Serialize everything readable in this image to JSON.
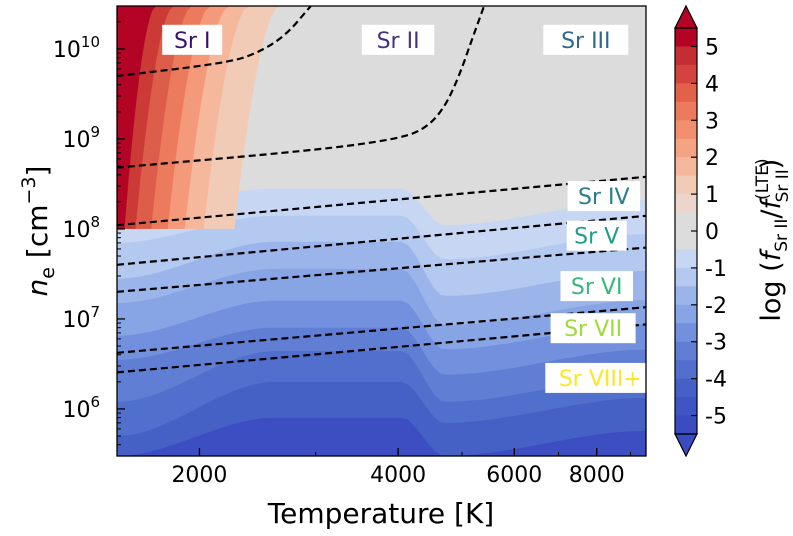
{
  "chart_data": {
    "type": "heatmap",
    "title": "",
    "xlabel": "Temperature [K]",
    "ylabel_main": "n",
    "ylabel_sub": "e",
    "ylabel_unit_open": " [cm",
    "ylabel_unit_exp": "−3",
    "ylabel_unit_close": "]",
    "x_scale": "log",
    "y_scale": "log",
    "xlim": [
      1500,
      9500
    ],
    "ylim": [
      300000,
      30000000000
    ],
    "x_ticks": [
      {
        "value": 2000,
        "label": "2000"
      },
      {
        "value": 4000,
        "label": "4000"
      },
      {
        "value": 6000,
        "label": "6000"
      },
      {
        "value": 8000,
        "label": "8000"
      }
    ],
    "y_ticks": [
      {
        "value": 1000000,
        "base": "10",
        "exp": "6"
      },
      {
        "value": 10000000,
        "base": "10",
        "exp": "7"
      },
      {
        "value": 100000000,
        "base": "10",
        "exp": "8"
      },
      {
        "value": 1000000000,
        "base": "10",
        "exp": "9"
      },
      {
        "value": 10000000000,
        "base": "10",
        "exp": "10"
      }
    ],
    "ion_stages": [
      {
        "label": "Sr I",
        "T": 1950,
        "ne": 12000000000,
        "color": "#3b0f6f"
      },
      {
        "label": "Sr II",
        "T": 4000,
        "ne": 12000000000,
        "color": "#46327e"
      },
      {
        "label": "Sr III",
        "T": 7700,
        "ne": 12000000000,
        "color": "#31688e"
      },
      {
        "label": "Sr IV",
        "T": 8200,
        "ne": 220000000,
        "color": "#277f8e"
      },
      {
        "label": "Sr V",
        "T": 8000,
        "ne": 80000000,
        "color": "#1f9e89"
      },
      {
        "label": "Sr VI",
        "T": 8000,
        "ne": 22000000,
        "color": "#35b779"
      },
      {
        "label": "Sr VII",
        "T": 7900,
        "ne": 7500000,
        "color": "#a0da39"
      },
      {
        "label": "Sr VIII+",
        "T": 8100,
        "ne": 2100000,
        "color": "#fde725"
      }
    ],
    "boundaries": [
      {
        "name": "Sr I / Sr II",
        "T": [
          1500,
          2200,
          2450,
          2700,
          2950
        ],
        "ne": [
          5000000000,
          7000000000,
          9000000000,
          14000000000,
          30000000000
        ]
      },
      {
        "name": "Sr II / Sr III",
        "T": [
          1500,
          3000,
          4000,
          4400,
          4700,
          4950,
          5200,
          5400
        ],
        "ne": [
          480000000,
          750000000,
          1000000000,
          1300000000,
          2200000000,
          5000000000,
          14000000000,
          30000000000
        ]
      },
      {
        "name": "Sr III / Sr IV",
        "T": [
          1500,
          9500
        ],
        "ne": [
          110000000,
          380000000
        ]
      },
      {
        "name": "Sr IV / Sr V",
        "T": [
          1500,
          9500
        ],
        "ne": [
          40000000,
          140000000
        ]
      },
      {
        "name": "Sr V / Sr VI",
        "T": [
          1500,
          9500
        ],
        "ne": [
          20000000,
          62000000
        ]
      },
      {
        "name": "Sr VI / Sr VII",
        "T": [
          1500,
          9500
        ],
        "ne": [
          4200000,
          13500000
        ]
      },
      {
        "name": "Sr VII / Sr VIII+",
        "T": [
          1500,
          9500
        ],
        "ne": [
          2550000,
          8700000
        ]
      }
    ],
    "fill_levels": [
      {
        "label": "0",
        "color": "#dcdcdc"
      },
      {
        "label": "0.5",
        "color": "#f2cbb7"
      },
      {
        "label": "1",
        "color": "#f5b89c"
      },
      {
        "label": "1.5",
        "color": "#f49a7b"
      },
      {
        "label": "2",
        "color": "#ec7a5c"
      },
      {
        "label": "2.5",
        "color": "#dc5d4a"
      },
      {
        "label": "3",
        "color": "#cb3a34"
      },
      {
        "label": "3.5",
        "color": "#b40426"
      }
    ],
    "level_curves": [
      {
        "name": "Sr I contour 0.5",
        "T_left": 2650,
        "slope": 0.46,
        "T_right": 2260
      },
      {
        "name": "Sr I contour 1.0",
        "T_left": 2380,
        "slope": 0.4,
        "T_right": 2030
      },
      {
        "name": "Sr I contour 1.5",
        "T_left": 2220,
        "slope": 0.36,
        "T_right": 1900
      },
      {
        "name": "Sr I contour 2.0",
        "T_left": 2080,
        "slope": 0.33,
        "T_right": 1790
      },
      {
        "name": "Sr I contour 2.5",
        "T_left": 1950,
        "slope": 0.3,
        "T_right": 1690
      },
      {
        "name": "Sr I contour 3.0",
        "T_left": 1830,
        "slope": 0.28,
        "T_right": 1600
      },
      {
        "name": "Sr I contour 3.5",
        "T_left": 1720,
        "slope": 0.26,
        "T_right": 1540
      }
    ],
    "blue_levels": [
      {
        "label": "-0.5",
        "color": "#c7d6f2",
        "low_ne": 160000000,
        "high_ne": 280000000,
        "drop_ne": 110000000
      },
      {
        "label": "-1",
        "color": "#b3c9f0",
        "low_ne": 70000000,
        "high_ne": 140000000,
        "drop_ne": 46000000
      },
      {
        "label": "-1.5",
        "color": "#9bb5ea",
        "low_ne": 28000000,
        "high_ne": 72000000,
        "drop_ne": 18000000
      },
      {
        "label": "-2",
        "color": "#87a5e4",
        "low_ne": 15000000,
        "high_ne": 36000000,
        "drop_ne": 8500000
      },
      {
        "label": "-2.5",
        "color": "#7290dd",
        "low_ne": 6500000,
        "high_ne": 16000000,
        "drop_ne": 4600000
      },
      {
        "label": "-3",
        "color": "#617ed5",
        "low_ne": 3500000,
        "high_ne": 8000000,
        "drop_ne": 2400000
      },
      {
        "label": "-3.5",
        "color": "#5170cd",
        "low_ne": 1200000,
        "high_ne": 4400000,
        "drop_ne": 1200000
      },
      {
        "label": "-4",
        "color": "#4661c6",
        "low_ne": 500000,
        "high_ne": 2000000,
        "drop_ne": 700000
      },
      {
        "label": "-4.5",
        "color": "#3c4ec2",
        "low_ne": 300000,
        "high_ne": 800000,
        "drop_ne": 300000
      }
    ],
    "colorbar": {
      "label": "log",
      "ylabel_prefix": "f",
      "ylabel_sub": "Sr II",
      "ylabel_super": "(LTE)",
      "range": [
        -5.5,
        5.5
      ],
      "levels": [
        {
          "from": 5,
          "to": 5.5,
          "color": "#b40426"
        },
        {
          "from": 4.5,
          "to": 5,
          "color": "#c42d32"
        },
        {
          "from": 4,
          "to": 4.5,
          "color": "#d5433e"
        },
        {
          "from": 3.5,
          "to": 4,
          "color": "#e16149"
        },
        {
          "from": 3,
          "to": 3.5,
          "color": "#ec7a5c"
        },
        {
          "from": 2.5,
          "to": 3,
          "color": "#f28f6e"
        },
        {
          "from": 2,
          "to": 2.5,
          "color": "#f4a383"
        },
        {
          "from": 1.5,
          "to": 2,
          "color": "#f5b89c"
        },
        {
          "from": 1,
          "to": 1.5,
          "color": "#f2cbb7"
        },
        {
          "from": 0.5,
          "to": 1,
          "color": "#ecd6cb"
        },
        {
          "from": -0.5,
          "to": 0.5,
          "color": "#dcdcdc"
        },
        {
          "from": -1,
          "to": -0.5,
          "color": "#c7d6f2"
        },
        {
          "from": -1.5,
          "to": -1,
          "color": "#b3c9f0"
        },
        {
          "from": -2,
          "to": -1.5,
          "color": "#9bb5ea"
        },
        {
          "from": -2.5,
          "to": -2,
          "color": "#87a5e4"
        },
        {
          "from": -3,
          "to": -2.5,
          "color": "#7290dd"
        },
        {
          "from": -3.5,
          "to": -3,
          "color": "#617ed5"
        },
        {
          "from": -4,
          "to": -3.5,
          "color": "#5170cd"
        },
        {
          "from": -4.5,
          "to": -4,
          "color": "#4661c6"
        },
        {
          "from": -5,
          "to": -4.5,
          "color": "#3f55c3"
        },
        {
          "from": -5.5,
          "to": -5,
          "color": "#3b4cc0"
        }
      ],
      "ticks": [
        {
          "value": 5,
          "label": "5"
        },
        {
          "value": 4,
          "label": "4"
        },
        {
          "value": 3,
          "label": "3"
        },
        {
          "value": 2,
          "label": "2"
        },
        {
          "value": 1,
          "label": "1"
        },
        {
          "value": 0,
          "label": "0"
        },
        {
          "value": -1,
          "label": "-1"
        },
        {
          "value": -2,
          "label": "-2"
        },
        {
          "value": -3,
          "label": "-3"
        },
        {
          "value": -4,
          "label": "-4"
        },
        {
          "value": -5,
          "label": "-5"
        }
      ],
      "max_color": "#b40426",
      "min_color": "#3b4cc0"
    }
  }
}
